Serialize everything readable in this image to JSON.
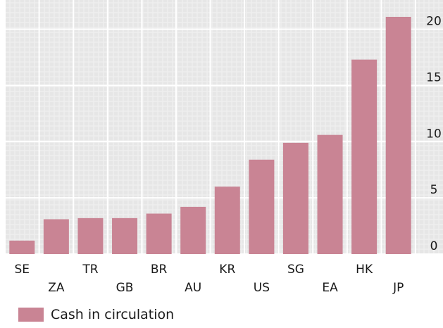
{
  "colors": {
    "bar": "#c98494",
    "plot_bg": "#e6e6e6",
    "grid_major": "#ffffff",
    "grid_minor": "#f1f1f1"
  },
  "legend": {
    "label": "Cash in circulation"
  },
  "chart_data": {
    "type": "bar",
    "categories": [
      "SE",
      "ZA",
      "TR",
      "GB",
      "BR",
      "AU",
      "KR",
      "US",
      "SG",
      "EA",
      "HK",
      "JP"
    ],
    "series": [
      {
        "name": "Cash in circulation",
        "values": [
          1.2,
          3.1,
          3.2,
          3.2,
          3.6,
          4.2,
          6.0,
          8.4,
          9.9,
          10.6,
          17.3,
          21.1
        ]
      }
    ],
    "yticks": [
      0,
      5,
      10,
      15,
      20
    ],
    "ylim": [
      0,
      22.6
    ],
    "y_axis_position": "right",
    "grid": true,
    "legend_position": "bottom-left",
    "title": "",
    "xlabel": "",
    "ylabel": ""
  }
}
